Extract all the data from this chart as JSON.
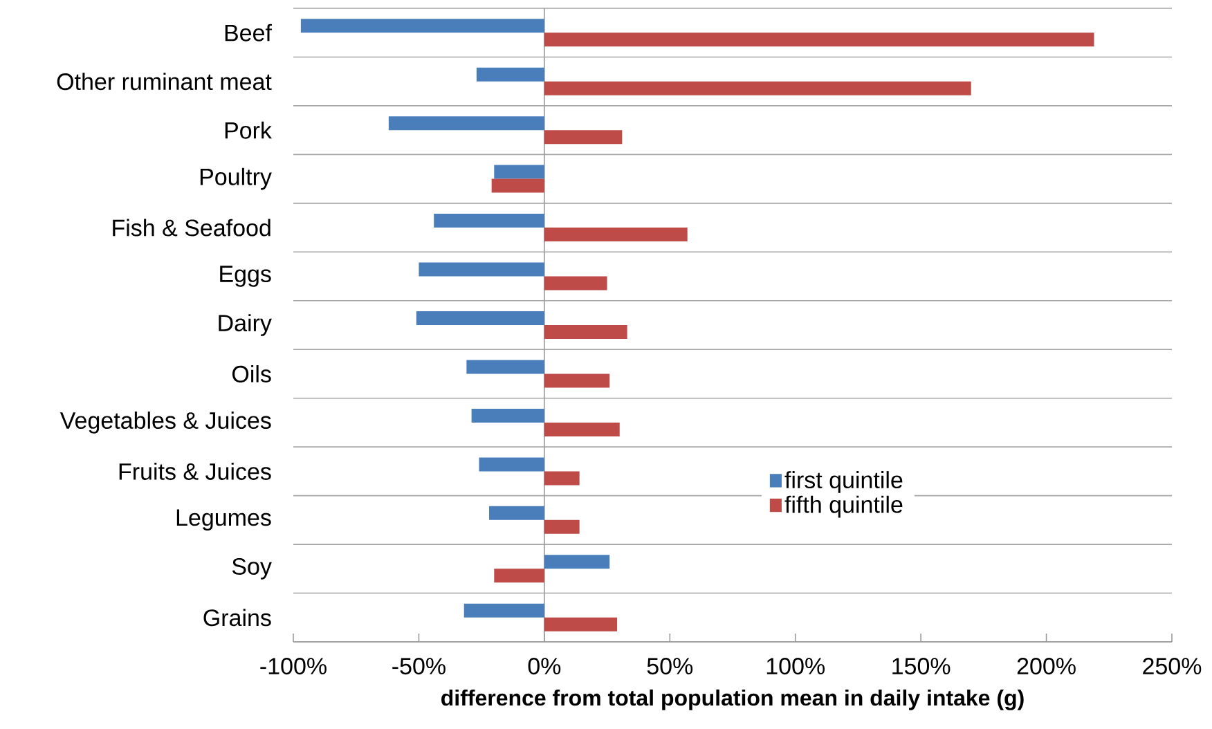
{
  "chart_data": {
    "type": "bar",
    "orientation": "horizontal",
    "xlabel": "difference from total population mean in daily intake (g)",
    "categories": [
      "Beef",
      "Other ruminant meat",
      "Pork",
      "Poultry",
      "Fish & Seafood",
      "Eggs",
      "Dairy",
      "Oils",
      "Vegetables & Juices",
      "Fruits & Juices",
      "Legumes",
      "Soy",
      "Grains"
    ],
    "series": [
      {
        "name": "first quintile",
        "color": "#4a7ebb",
        "values": [
          -97,
          -27,
          -62,
          -20,
          -44,
          -50,
          -51,
          -31,
          -29,
          -26,
          -22,
          26,
          -32
        ]
      },
      {
        "name": "fifth quintile",
        "color": "#be4b48",
        "values": [
          219,
          170,
          31,
          -21,
          57,
          25,
          33,
          26,
          30,
          14,
          14,
          -20,
          29
        ]
      }
    ],
    "xlim": [
      -100,
      250
    ],
    "xticks": [
      {
        "value": -100,
        "label": "-100%"
      },
      {
        "value": -50,
        "label": "-50%"
      },
      {
        "value": 0,
        "label": "0%"
      },
      {
        "value": 50,
        "label": "50%"
      },
      {
        "value": 100,
        "label": "100%"
      },
      {
        "value": 150,
        "label": "150%"
      },
      {
        "value": 200,
        "label": "200%"
      },
      {
        "value": 250,
        "label": "250%"
      }
    ],
    "grid": "y",
    "legend": "right"
  }
}
